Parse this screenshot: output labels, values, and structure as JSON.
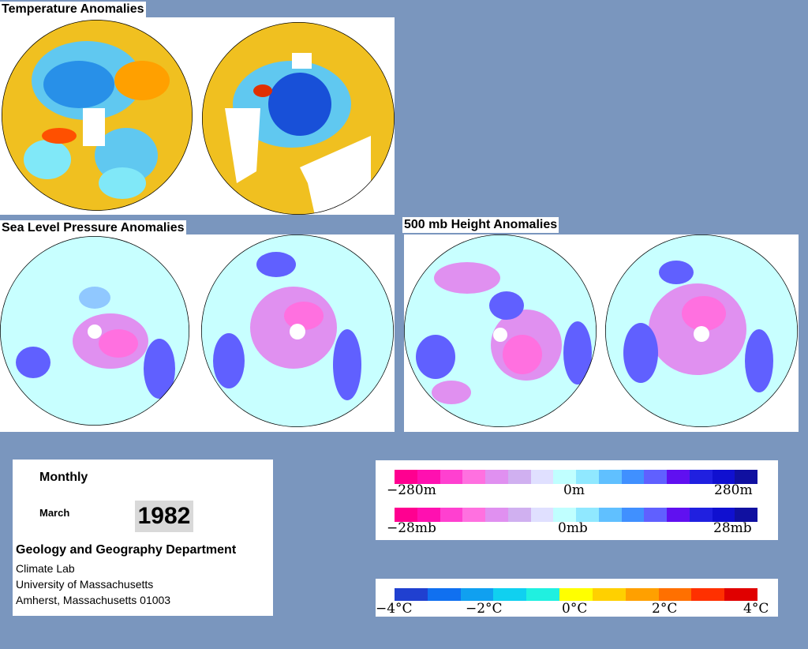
{
  "titles": {
    "temperature": "Temperature Anomalies",
    "slp": "Sea Level Pressure Anomalies",
    "height": "500 mb Height Anomalies"
  },
  "info": {
    "frequency": "Monthly",
    "month": "March",
    "year": "1982",
    "department": "Geology and Geography Department",
    "lab": "Climate Lab",
    "university": "University of Massachusetts",
    "address": "Amherst, Massachusetts 01003"
  },
  "legends": {
    "height": {
      "left": "−280m",
      "mid": "0m",
      "right": "280m"
    },
    "pressure": {
      "left": "−28mb",
      "mid": "0mb",
      "right": "28mb"
    },
    "temperature": {
      "l1": "−4°C",
      "l2": "−2°C",
      "mid": "0°C",
      "r1": "2°C",
      "r2": "4°C"
    }
  },
  "colors": {
    "anomaly_scale": [
      "#ff0090",
      "#ff10b0",
      "#ff40d0",
      "#ff70e0",
      "#e090f0",
      "#d0b0f0",
      "#e0e0ff",
      "#c0ffff",
      "#90e8ff",
      "#60c0ff",
      "#4090ff",
      "#6060ff",
      "#6010f0",
      "#2020e0",
      "#1010d0",
      "#1010a0"
    ],
    "temp_scale": [
      "#2040d0",
      "#1070f0",
      "#10a0f0",
      "#10d0f0",
      "#20f0e0",
      "#ffff00",
      "#ffd000",
      "#ffa000",
      "#ff7000",
      "#ff3000",
      "#e00000"
    ],
    "background": "#7a96be"
  }
}
